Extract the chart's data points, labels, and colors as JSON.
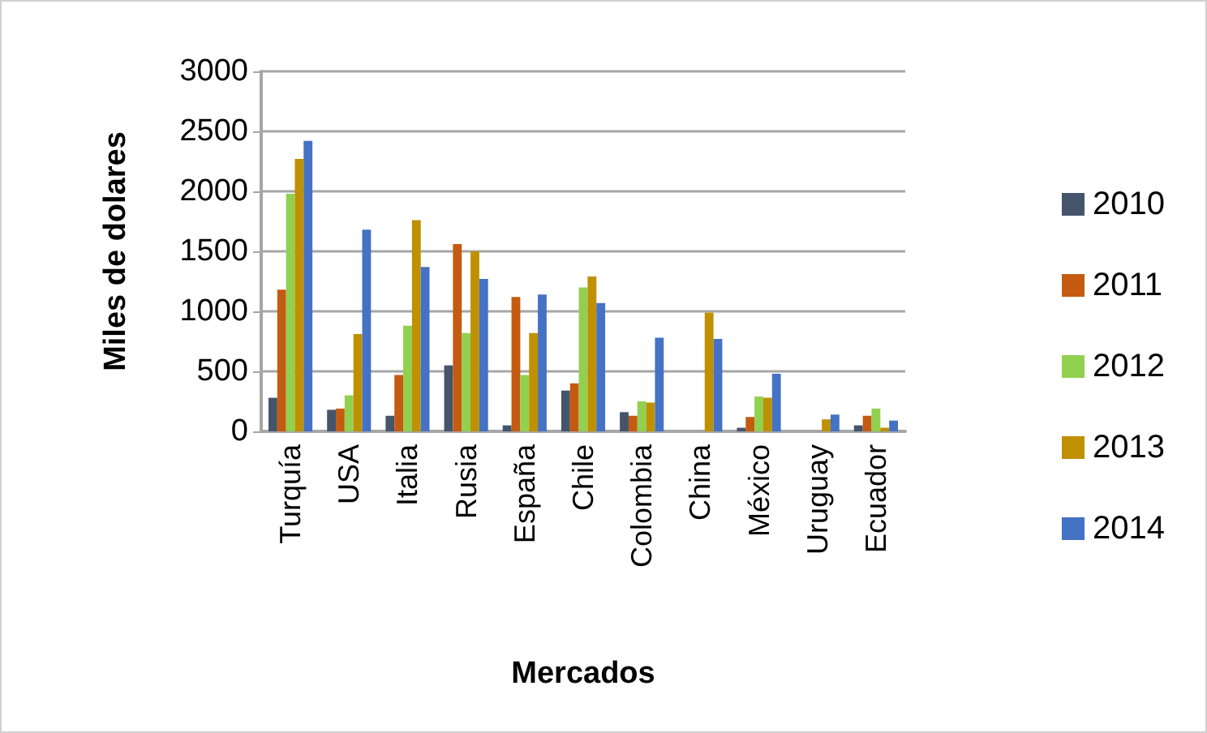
{
  "chart_data": {
    "type": "bar",
    "xlabel": "Mercados",
    "ylabel": "Miles de dolares",
    "categories": [
      "Turquía",
      "USA",
      "Italia",
      "Rusia",
      "España",
      "Chile",
      "Colombia",
      "China",
      "México",
      "Uruguay",
      "Ecuador"
    ],
    "series": [
      {
        "name": "2010",
        "color": "#44546a",
        "values": [
          280,
          180,
          130,
          550,
          50,
          340,
          160,
          0,
          30,
          0,
          50
        ]
      },
      {
        "name": "2011",
        "color": "#c55a11",
        "values": [
          1180,
          190,
          470,
          1560,
          1120,
          400,
          130,
          0,
          120,
          0,
          130
        ]
      },
      {
        "name": "2012",
        "color": "#92d050",
        "values": [
          1980,
          300,
          880,
          820,
          470,
          1200,
          250,
          0,
          290,
          0,
          190
        ]
      },
      {
        "name": "2013",
        "color": "#bf9000",
        "values": [
          2270,
          810,
          1760,
          1500,
          820,
          1290,
          240,
          990,
          280,
          100,
          30
        ]
      },
      {
        "name": "2014",
        "color": "#4472c4",
        "values": [
          2420,
          1680,
          1370,
          1270,
          1140,
          1070,
          780,
          770,
          480,
          140,
          90
        ]
      }
    ],
    "ylim": [
      0,
      3000
    ],
    "yticks": [
      0,
      500,
      1000,
      1500,
      2000,
      2500,
      3000
    ],
    "grid": "y",
    "legend": "right"
  }
}
